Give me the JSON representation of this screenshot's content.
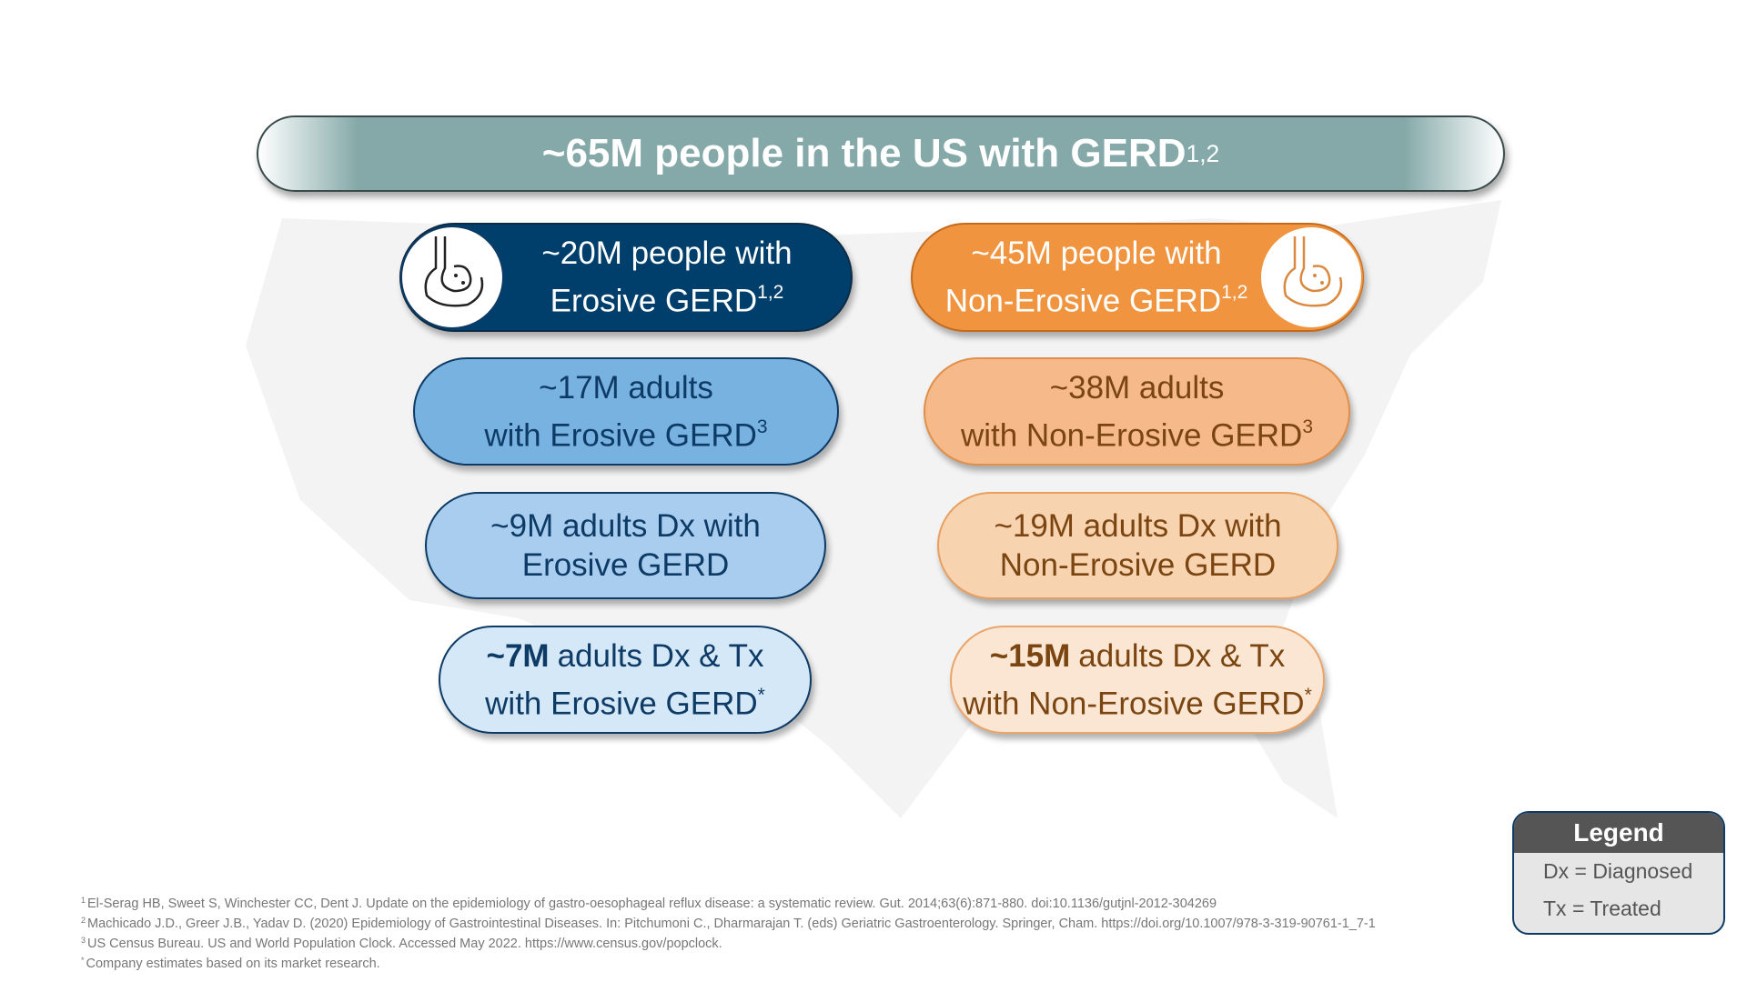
{
  "header": {
    "title": "~65M people in the US with GERD",
    "sup": "1,2"
  },
  "erosive": [
    {
      "line1": "~20M people with",
      "line2": "Erosive GERD",
      "sup": "1,2"
    },
    {
      "line1": "~17M adults",
      "line2": "with Erosive GERD",
      "sup": "3"
    },
    {
      "line1": "~9M adults Dx with",
      "line2": "Erosive GERD"
    },
    {
      "bold": "~7M",
      "line1": "adults Dx & Tx",
      "line2": "with Erosive GERD",
      "sup": "*"
    }
  ],
  "non_erosive": [
    {
      "line1": "~45M people with",
      "line2": "Non-Erosive GERD",
      "sup": "1,2"
    },
    {
      "line1": "~38M adults",
      "line2": "with Non-Erosive GERD",
      "sup": "3"
    },
    {
      "line1": "~19M adults Dx with",
      "line2": "Non-Erosive GERD"
    },
    {
      "bold": "~15M",
      "line1": "adults Dx & Tx",
      "line2": "with Non-Erosive GERD",
      "sup": "*"
    }
  ],
  "legend": {
    "title": "Legend",
    "items": [
      "Dx = Diagnosed",
      "Tx = Treated"
    ]
  },
  "footnotes": [
    {
      "mark": "1",
      "text": "El-Serag HB, Sweet S, Winchester CC, Dent J. Update on the epidemiology of gastro-oesophageal reflux disease: a systematic review. Gut. 2014;63(6):871-880. doi:10.1136/gutjnl-2012-304269"
    },
    {
      "mark": "2",
      "text": "Machicado J.D., Greer J.B., Yadav D. (2020) Epidemiology of Gastrointestinal Diseases. In: Pitchumoni C., Dharmarajan T. (eds) Geriatric Gastroenterology. Springer, Cham. https://doi.org/10.1007/978-3-319-90761-1_7-1"
    },
    {
      "mark": "3",
      "text": "US Census Bureau. US and World Population Clock. Accessed May 2022. https://www.census.gov/popclock."
    },
    {
      "mark": "*",
      "text": "Company estimates based on its market research."
    }
  ]
}
